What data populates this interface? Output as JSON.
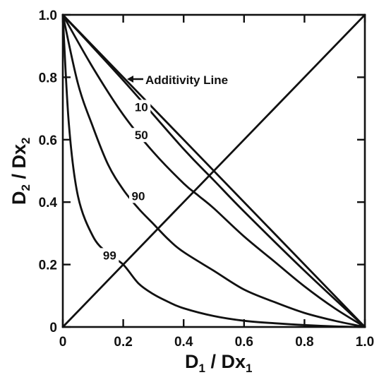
{
  "chart_data": {
    "type": "line",
    "title": "",
    "xlabel": {
      "main": "D",
      "sub1": "1",
      "mid": " / Dx",
      "sub2": "1"
    },
    "ylabel": {
      "main": "D",
      "sub1": "2",
      "mid": " / Dx",
      "sub2": "2"
    },
    "xlim": [
      0,
      1
    ],
    "ylim": [
      0,
      1
    ],
    "x_ticks": [
      "0",
      "0.2",
      "0.4",
      "0.6",
      "0.8",
      "1.0"
    ],
    "y_ticks": [
      "0",
      "0.2",
      "0.4",
      "0.6",
      "0.8",
      "1.0"
    ],
    "grid": false,
    "annotation": "Additivity Line",
    "series": [
      {
        "name": "Additivity Line",
        "x": [
          0,
          1
        ],
        "y": [
          1,
          0
        ]
      },
      {
        "name": "10",
        "x": [
          0,
          0.2,
          0.4,
          0.5,
          0.6,
          0.8,
          1.0
        ],
        "y": [
          1,
          0.79,
          0.57,
          0.47,
          0.37,
          0.18,
          0
        ]
      },
      {
        "name": "50",
        "x": [
          0,
          0.1,
          0.2,
          0.3,
          0.4,
          0.45,
          0.5,
          0.6,
          0.7,
          0.8,
          0.9,
          1.0
        ],
        "y": [
          1,
          0.83,
          0.68,
          0.56,
          0.46,
          0.42,
          0.38,
          0.29,
          0.21,
          0.13,
          0.06,
          0
        ]
      },
      {
        "name": "90",
        "x": [
          0,
          0.05,
          0.1,
          0.15,
          0.2,
          0.25,
          0.3,
          0.35,
          0.4,
          0.5,
          0.6,
          0.7,
          0.8,
          0.9,
          1.0
        ],
        "y": [
          1,
          0.78,
          0.64,
          0.52,
          0.44,
          0.38,
          0.33,
          0.28,
          0.24,
          0.18,
          0.12,
          0.08,
          0.045,
          0.02,
          0
        ]
      },
      {
        "name": "99",
        "x": [
          0,
          0.02,
          0.05,
          0.1,
          0.15,
          0.2,
          0.25,
          0.3,
          0.35,
          0.4,
          0.5,
          0.6,
          0.7,
          0.8,
          0.9,
          1.0
        ],
        "y": [
          1,
          0.65,
          0.42,
          0.29,
          0.235,
          0.2,
          0.14,
          0.105,
          0.08,
          0.06,
          0.035,
          0.02,
          0.012,
          0.006,
          0.002,
          0
        ]
      },
      {
        "name": "",
        "x": [
          0,
          1
        ],
        "y": [
          0,
          1
        ]
      }
    ],
    "curve_labels": [
      {
        "text": "10",
        "x": 0.26,
        "y": 0.705
      },
      {
        "text": "50",
        "x": 0.26,
        "y": 0.615
      },
      {
        "text": "90",
        "x": 0.25,
        "y": 0.42
      },
      {
        "text": "99",
        "x": 0.155,
        "y": 0.23
      }
    ]
  }
}
